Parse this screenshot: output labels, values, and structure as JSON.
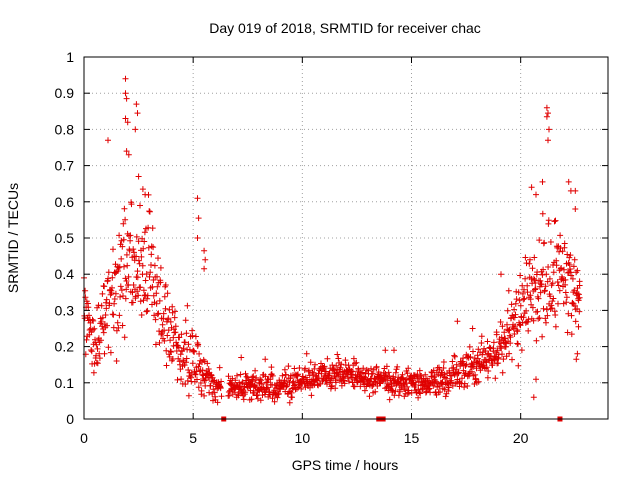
{
  "chart_data": {
    "type": "scatter",
    "title": "Day 019 of 2018, SRMTID for receiver chac",
    "xlabel": "GPS time / hours",
    "ylabel": "SRMTID / TECUs",
    "xlim": [
      0,
      24
    ],
    "ylim": [
      0,
      1
    ],
    "xticks": [
      "0",
      "5",
      "10",
      "15",
      "20"
    ],
    "yticks": [
      "0",
      "0.1",
      "0.2",
      "0.3",
      "0.4",
      "0.5",
      "0.6",
      "0.7",
      "0.8",
      "0.9",
      "1"
    ],
    "grid": true,
    "marker": "+",
    "series_color": "#e00000",
    "profile": {
      "x": [
        0,
        0.5,
        1,
        1.5,
        2,
        2.5,
        3,
        3.5,
        4,
        4.5,
        5,
        5.5,
        6,
        7,
        8,
        9,
        10,
        11,
        12,
        13,
        13.5,
        14,
        15,
        16,
        17,
        18,
        19,
        19.5,
        20,
        20.5,
        21,
        21.5,
        22,
        22.5,
        22.7
      ],
      "median": [
        0.31,
        0.2,
        0.3,
        0.37,
        0.45,
        0.42,
        0.45,
        0.3,
        0.24,
        0.18,
        0.17,
        0.12,
        0.1,
        0.09,
        0.09,
        0.09,
        0.11,
        0.12,
        0.12,
        0.11,
        0.11,
        0.1,
        0.1,
        0.1,
        0.12,
        0.15,
        0.18,
        0.25,
        0.3,
        0.35,
        0.4,
        0.38,
        0.42,
        0.35,
        0.3
      ],
      "spread": [
        0.08,
        0.07,
        0.12,
        0.15,
        0.17,
        0.17,
        0.17,
        0.1,
        0.09,
        0.07,
        0.1,
        0.05,
        0.04,
        0.03,
        0.035,
        0.035,
        0.035,
        0.035,
        0.035,
        0.035,
        0.035,
        0.035,
        0.035,
        0.035,
        0.045,
        0.05,
        0.06,
        0.08,
        0.1,
        0.12,
        0.14,
        0.13,
        0.12,
        0.1,
        0.07
      ]
    },
    "peaks": [
      {
        "x": 1.9,
        "y": 0.94
      },
      {
        "x": 1.9,
        "y": 0.9
      },
      {
        "x": 1.95,
        "y": 0.885
      },
      {
        "x": 1.9,
        "y": 0.83
      },
      {
        "x": 2.0,
        "y": 0.82
      },
      {
        "x": 2.4,
        "y": 0.87
      },
      {
        "x": 2.45,
        "y": 0.845
      },
      {
        "x": 2.35,
        "y": 0.8
      },
      {
        "x": 1.95,
        "y": 0.74
      },
      {
        "x": 2.05,
        "y": 0.73
      },
      {
        "x": 1.1,
        "y": 0.77
      },
      {
        "x": 2.5,
        "y": 0.67
      },
      {
        "x": 2.7,
        "y": 0.635
      },
      {
        "x": 2.8,
        "y": 0.62
      },
      {
        "x": 5.2,
        "y": 0.61
      },
      {
        "x": 5.25,
        "y": 0.555
      },
      {
        "x": 5.2,
        "y": 0.5
      },
      {
        "x": 5.5,
        "y": 0.465
      },
      {
        "x": 5.55,
        "y": 0.44
      },
      {
        "x": 5.5,
        "y": 0.415
      },
      {
        "x": 21.2,
        "y": 0.86
      },
      {
        "x": 21.25,
        "y": 0.845
      },
      {
        "x": 21.2,
        "y": 0.835
      },
      {
        "x": 21.3,
        "y": 0.8
      },
      {
        "x": 21.25,
        "y": 0.77
      },
      {
        "x": 20.5,
        "y": 0.64
      },
      {
        "x": 20.7,
        "y": 0.62
      },
      {
        "x": 21.0,
        "y": 0.655
      },
      {
        "x": 22.2,
        "y": 0.655
      },
      {
        "x": 22.3,
        "y": 0.63
      },
      {
        "x": 22.5,
        "y": 0.63
      },
      {
        "x": 22.5,
        "y": 0.58
      },
      {
        "x": 22.6,
        "y": 0.41
      },
      {
        "x": 22.7,
        "y": 0.38
      },
      {
        "x": 22.7,
        "y": 0.335
      },
      {
        "x": 22.65,
        "y": 0.255
      },
      {
        "x": 22.6,
        "y": 0.18
      },
      {
        "x": 22.55,
        "y": 0.165
      },
      {
        "x": 20.7,
        "y": 0.11
      },
      {
        "x": 20.6,
        "y": 0.06
      },
      {
        "x": 7.2,
        "y": 0.17
      },
      {
        "x": 8.3,
        "y": 0.165
      },
      {
        "x": 10.2,
        "y": 0.18
      },
      {
        "x": 13.8,
        "y": 0.19
      },
      {
        "x": 14.2,
        "y": 0.19
      },
      {
        "x": 17.1,
        "y": 0.27
      },
      {
        "x": 17.8,
        "y": 0.25
      },
      {
        "x": 18.2,
        "y": 0.21
      },
      {
        "x": 18.9,
        "y": 0.24
      },
      {
        "x": 19.1,
        "y": 0.4
      }
    ],
    "gaps": [
      {
        "x": 6.4,
        "y": 0
      },
      {
        "x": 13.5,
        "y": 0
      },
      {
        "x": 13.7,
        "y": 0
      },
      {
        "x": 21.8,
        "y": 0
      }
    ]
  }
}
